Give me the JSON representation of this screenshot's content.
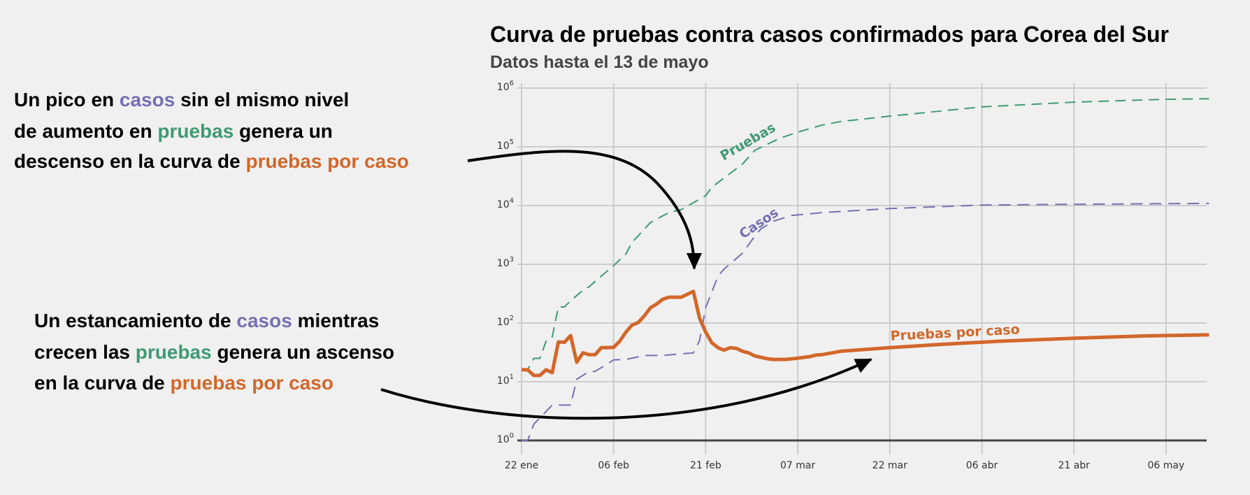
{
  "colors": {
    "background": "#f0f0f0",
    "grid": "#cccccc",
    "baseline": "#444444",
    "pruebas": "#3f9a72",
    "casos": "#7570b3",
    "pruebas_por_caso": "#d2672a",
    "arrow": "#000000"
  },
  "annotations": [
    {
      "lines": [
        [
          {
            "text": "Un pico en ",
            "color": "#000000"
          },
          {
            "text": "casos",
            "color": "#7570b3"
          },
          {
            "text": " sin el mismo nivel",
            "color": "#000000"
          }
        ],
        [
          {
            "text": "de aumento en ",
            "color": "#000000"
          },
          {
            "text": "pruebas",
            "color": "#3f9a72"
          },
          {
            "text": " genera un",
            "color": "#000000"
          }
        ],
        [
          {
            "text": "descenso en la curva de ",
            "color": "#000000"
          },
          {
            "text": "pruebas por caso",
            "color": "#d2672a"
          }
        ]
      ]
    },
    {
      "lines": [
        [
          {
            "text": "Un estancamiento de ",
            "color": "#000000"
          },
          {
            "text": "casos",
            "color": "#7570b3"
          },
          {
            "text": " mientras",
            "color": "#000000"
          }
        ],
        [
          {
            "text": "crecen las ",
            "color": "#000000"
          },
          {
            "text": "pruebas",
            "color": "#3f9a72"
          },
          {
            "text": " genera un ascenso",
            "color": "#000000"
          }
        ],
        [
          {
            "text": "en la curva de ",
            "color": "#000000"
          },
          {
            "text": "pruebas por caso",
            "color": "#d2672a"
          }
        ]
      ]
    }
  ],
  "chart_data": {
    "type": "line",
    "title": "Curva de pruebas contra casos confirmados para Corea del Sur",
    "subtitle": "Datos hasta el 13 de mayo",
    "xlabel": "",
    "ylabel": "",
    "y_scale": "log",
    "ylim": [
      1,
      1000000
    ],
    "xlim": [
      "01-22",
      "05-13"
    ],
    "grid": true,
    "legend": "none (inline series labels)",
    "x_ticks": [
      {
        "date": "01-22",
        "label": "22 ene"
      },
      {
        "date": "02-06",
        "label": "06 feb"
      },
      {
        "date": "02-21",
        "label": "21 feb"
      },
      {
        "date": "03-07",
        "label": "07 mar"
      },
      {
        "date": "03-22",
        "label": "22 mar"
      },
      {
        "date": "04-06",
        "label": "06 abr"
      },
      {
        "date": "04-21",
        "label": "21 abr"
      },
      {
        "date": "05-06",
        "label": "06 may"
      }
    ],
    "y_ticks": [
      {
        "value": 1,
        "base": "10",
        "exp": "0"
      },
      {
        "value": 10,
        "base": "10",
        "exp": "1"
      },
      {
        "value": 100,
        "base": "10",
        "exp": "2"
      },
      {
        "value": 1000,
        "base": "10",
        "exp": "3"
      },
      {
        "value": 10000,
        "base": "10",
        "exp": "4"
      },
      {
        "value": 100000,
        "base": "10",
        "exp": "5"
      },
      {
        "value": 1000000,
        "base": "10",
        "exp": "6"
      }
    ],
    "series": [
      {
        "name": "Pruebas",
        "style": "dashed",
        "color": "#3f9a72",
        "points": [
          [
            "01-22",
            16
          ],
          [
            "01-23",
            16
          ],
          [
            "01-24",
            25
          ],
          [
            "01-25",
            25
          ],
          [
            "01-26",
            49
          ],
          [
            "01-27",
            58
          ],
          [
            "01-28",
            188
          ],
          [
            "01-29",
            188
          ],
          [
            "01-30",
            240
          ],
          [
            "02-01",
            360
          ],
          [
            "02-02",
            415
          ],
          [
            "02-04",
            630
          ],
          [
            "02-06",
            950
          ],
          [
            "02-08",
            1500
          ],
          [
            "02-09",
            2350
          ],
          [
            "02-12",
            5150
          ],
          [
            "02-15",
            7600
          ],
          [
            "02-17",
            8500
          ],
          [
            "02-21",
            14700
          ],
          [
            "02-22",
            20500
          ],
          [
            "02-27",
            51000
          ],
          [
            "02-29",
            87000
          ],
          [
            "03-04",
            139000
          ],
          [
            "03-07",
            178000
          ],
          [
            "03-11",
            235000
          ],
          [
            "03-14",
            270000
          ],
          [
            "03-22",
            333000
          ],
          [
            "04-06",
            478000
          ],
          [
            "04-21",
            576000
          ],
          [
            "05-06",
            645000
          ],
          [
            "05-13",
            660000
          ]
        ]
      },
      {
        "name": "Casos",
        "style": "dashed",
        "color": "#7570b3",
        "points": [
          [
            "01-22",
            1
          ],
          [
            "01-23",
            1
          ],
          [
            "01-24",
            1.9
          ],
          [
            "01-27",
            4
          ],
          [
            "01-30",
            4
          ],
          [
            "01-31",
            11
          ],
          [
            "02-02",
            15
          ],
          [
            "02-03",
            15
          ],
          [
            "02-06",
            23.5
          ],
          [
            "02-08",
            24
          ],
          [
            "02-11",
            28
          ],
          [
            "02-14",
            28
          ],
          [
            "02-19",
            31
          ],
          [
            "02-20",
            50
          ],
          [
            "02-21",
            182
          ],
          [
            "02-23",
            630
          ],
          [
            "02-24",
            830
          ],
          [
            "02-25",
            1020
          ],
          [
            "02-27",
            1550
          ],
          [
            "02-29",
            3000
          ],
          [
            "03-01",
            4000
          ],
          [
            "03-03",
            5400
          ],
          [
            "03-06",
            6800
          ],
          [
            "03-10",
            7400
          ],
          [
            "03-11",
            7600
          ],
          [
            "03-22",
            8900
          ],
          [
            "04-06",
            10200
          ],
          [
            "04-21",
            10500
          ],
          [
            "05-13",
            10900
          ]
        ]
      },
      {
        "name": "Pruebas por caso",
        "style": "solid",
        "color": "#d2672a",
        "points": [
          [
            "01-22",
            16
          ],
          [
            "01-23",
            16
          ],
          [
            "01-24",
            12.8
          ],
          [
            "01-25",
            12.8
          ],
          [
            "01-26",
            16
          ],
          [
            "01-27",
            14.3
          ],
          [
            "01-28",
            47.6
          ],
          [
            "01-29",
            47
          ],
          [
            "01-30",
            61
          ],
          [
            "01-31",
            21.5
          ],
          [
            "02-01",
            31
          ],
          [
            "02-02",
            29
          ],
          [
            "02-03",
            29
          ],
          [
            "02-04",
            38
          ],
          [
            "02-05",
            38
          ],
          [
            "02-06",
            38.5
          ],
          [
            "02-07",
            49
          ],
          [
            "02-08",
            70
          ],
          [
            "02-09",
            92
          ],
          [
            "02-10",
            102
          ],
          [
            "02-11",
            132
          ],
          [
            "02-12",
            182
          ],
          [
            "02-13",
            210
          ],
          [
            "02-14",
            253
          ],
          [
            "02-15",
            275
          ],
          [
            "02-16",
            275
          ],
          [
            "02-17",
            275
          ],
          [
            "02-18",
            308
          ],
          [
            "02-19",
            346
          ],
          [
            "02-20",
            121
          ],
          [
            "02-21",
            70
          ],
          [
            "02-22",
            46
          ],
          [
            "02-23",
            38
          ],
          [
            "02-24",
            34.5
          ],
          [
            "02-25",
            38
          ],
          [
            "02-26",
            37
          ],
          [
            "02-27",
            33
          ],
          [
            "02-28",
            31
          ],
          [
            "02-29",
            27.5
          ],
          [
            "03-01",
            26
          ],
          [
            "03-02",
            24.7
          ],
          [
            "03-03",
            24
          ],
          [
            "03-05",
            24
          ],
          [
            "03-06",
            24.5
          ],
          [
            "03-09",
            26.8
          ],
          [
            "03-10",
            28.5
          ],
          [
            "03-11",
            29
          ],
          [
            "03-14",
            33
          ],
          [
            "03-22",
            38
          ],
          [
            "03-30",
            43
          ],
          [
            "04-09",
            49
          ],
          [
            "04-21",
            55
          ],
          [
            "05-02",
            60
          ],
          [
            "05-13",
            63
          ]
        ]
      }
    ],
    "series_labels": [
      "Pruebas",
      "Casos",
      "Pruebas por caso"
    ]
  }
}
